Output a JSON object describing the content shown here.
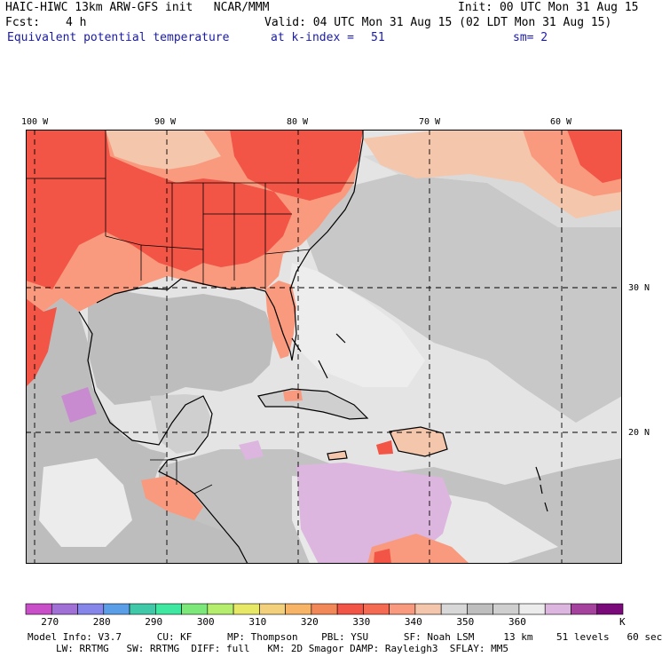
{
  "header": {
    "title": "HAIC-HIWC 13km ARW-GFS init   NCAR/MMM",
    "init": "Init: 00 UTC Mon 31 Aug 15",
    "fcst_label": "Fcst:",
    "fcst_value": "4 h",
    "valid": "Valid: 04 UTC Mon 31 Aug 15 (02 LDT Mon 31 Aug 15)",
    "field": "Equivalent potential temperature",
    "level_label": "at k-index =",
    "level_value": "51",
    "smooth": "sm= 2"
  },
  "map": {
    "lon_labels": [
      "100 W",
      "90 W",
      "80 W",
      "70 W",
      "60 W"
    ],
    "lat_labels": [
      "30 N",
      "20 N"
    ],
    "colors": {
      "land_hot": "#f25446",
      "salmon": "#f99a7e",
      "peach": "#f4c6ab",
      "gray_med": "#bdbdbd",
      "gray_light": "#d2d2d2",
      "gray_pale": "#ececec",
      "lilac": "#dcb6de",
      "coast": "#000000"
    }
  },
  "colorbar": {
    "colors": [
      "#c94fc9",
      "#a170d6",
      "#8585ea",
      "#5a9ee8",
      "#40c9a8",
      "#3fe8a0",
      "#7de87a",
      "#b4ee6c",
      "#e8e867",
      "#f3d07c",
      "#f7b466",
      "#f28857",
      "#f25446",
      "#f56a53",
      "#f99a7e",
      "#f4c6ab",
      "#d8d8d8",
      "#bebebe",
      "#cfcfcf",
      "#ececec",
      "#dcb6de",
      "#a5429e",
      "#7a0a7a"
    ],
    "labels": [
      "270",
      "280",
      "290",
      "300",
      "310",
      "320",
      "330",
      "340",
      "350",
      "360"
    ],
    "unit": "K"
  },
  "footer": {
    "line1": "Model Info: V3.7      CU: KF      MP: Thompson    PBL: YSU      SF: Noah LSM     13 km    51 levels   60 sec",
    "line2": "LW: RRTMG   SW: RRTMG  DIFF: full   KM: 2D Smagor DAMP: Rayleigh3  SFLAY: MM5"
  }
}
